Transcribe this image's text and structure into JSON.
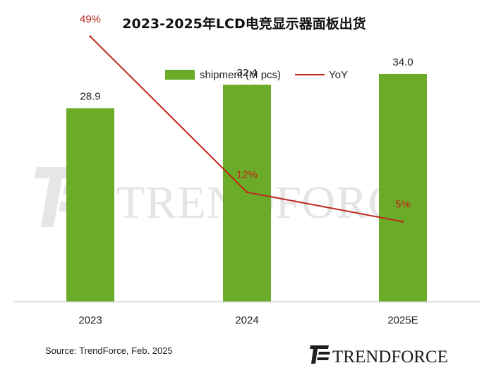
{
  "chart_data": {
    "type": "bar",
    "title": "2023-2025年LCD电竞显示器面板出货",
    "categories": [
      "2023",
      "2024",
      "2025E"
    ],
    "series": [
      {
        "name": "shipment (M pcs)",
        "type": "bar",
        "values": [
          28.9,
          32.4,
          34.0
        ],
        "labels": [
          "28.9",
          "32.4",
          "34.0"
        ],
        "color": "#6aab27"
      },
      {
        "name": "YoY",
        "type": "line",
        "values": [
          49,
          12,
          5
        ],
        "labels": [
          "49%",
          "12%",
          "5%"
        ],
        "color": "#c0281c"
      }
    ],
    "ylim": [
      0,
      44
    ],
    "yoy_ylim": [
      -14,
      56
    ],
    "legend_position": "top",
    "grid": false
  },
  "source": "Source: TrendForce, Feb. 2025",
  "watermark": {
    "text": "TRENDFORCE"
  },
  "logo": {
    "text": "TRENDFORCE"
  }
}
